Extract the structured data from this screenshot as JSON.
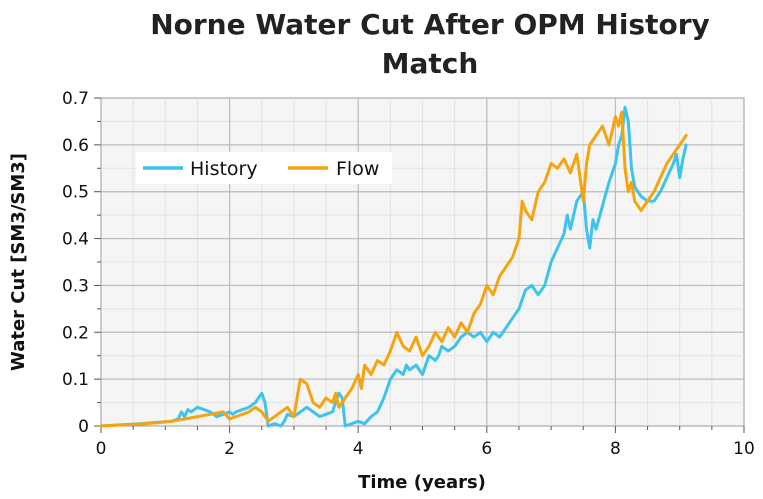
{
  "chart_data": {
    "type": "line",
    "title_line1": "Norne Water Cut After OPM History",
    "title_line2": "Match",
    "xlabel": "Time (years)",
    "ylabel": "Water Cut [SM3/SM3]",
    "xlim": [
      0,
      10
    ],
    "ylim": [
      0,
      0.7
    ],
    "x_ticks": [
      "0",
      "2",
      "4",
      "6",
      "8",
      "10"
    ],
    "y_ticks": [
      "0",
      "0.1",
      "0.2",
      "0.3",
      "0.4",
      "0.5",
      "0.6",
      "0.7"
    ],
    "grid": true,
    "legend_position": "upper-left",
    "series": [
      {
        "name": "History",
        "color": "#3cc3ee",
        "x": [
          0,
          0.6,
          1.1,
          1.2,
          1.25,
          1.3,
          1.35,
          1.4,
          1.5,
          1.6,
          1.7,
          1.8,
          1.9,
          2.0,
          2.05,
          2.1,
          2.2,
          2.3,
          2.4,
          2.45,
          2.5,
          2.55,
          2.6,
          2.7,
          2.8,
          2.85,
          2.9,
          3.0,
          3.1,
          3.2,
          3.3,
          3.4,
          3.5,
          3.6,
          3.7,
          3.75,
          3.8,
          3.9,
          4.0,
          4.1,
          4.2,
          4.3,
          4.4,
          4.5,
          4.6,
          4.7,
          4.75,
          4.8,
          4.9,
          5.0,
          5.1,
          5.2,
          5.25,
          5.3,
          5.4,
          5.5,
          5.6,
          5.7,
          5.8,
          5.9,
          6.0,
          6.1,
          6.2,
          6.3,
          6.4,
          6.5,
          6.55,
          6.6,
          6.7,
          6.8,
          6.9,
          7.0,
          7.1,
          7.2,
          7.25,
          7.3,
          7.4,
          7.5,
          7.55,
          7.6,
          7.65,
          7.7,
          7.8,
          7.9,
          8.0,
          8.05,
          8.1,
          8.15,
          8.2,
          8.25,
          8.3,
          8.35,
          8.4,
          8.5,
          8.6,
          8.7,
          8.8,
          8.9,
          8.95,
          9.0,
          9.05,
          9.1
        ],
        "y": [
          0.0,
          0.005,
          0.01,
          0.015,
          0.03,
          0.02,
          0.035,
          0.03,
          0.04,
          0.035,
          0.03,
          0.02,
          0.025,
          0.03,
          0.025,
          0.03,
          0.035,
          0.04,
          0.05,
          0.06,
          0.07,
          0.05,
          0.0,
          0.005,
          0.0,
          0.01,
          0.025,
          0.02,
          0.03,
          0.04,
          0.03,
          0.02,
          0.025,
          0.03,
          0.07,
          0.06,
          0.0,
          0.005,
          0.01,
          0.005,
          0.02,
          0.03,
          0.06,
          0.1,
          0.12,
          0.11,
          0.13,
          0.12,
          0.13,
          0.11,
          0.15,
          0.14,
          0.15,
          0.17,
          0.16,
          0.17,
          0.19,
          0.2,
          0.19,
          0.2,
          0.18,
          0.2,
          0.19,
          0.21,
          0.23,
          0.25,
          0.27,
          0.29,
          0.3,
          0.28,
          0.3,
          0.35,
          0.38,
          0.41,
          0.45,
          0.42,
          0.48,
          0.5,
          0.42,
          0.38,
          0.44,
          0.42,
          0.47,
          0.52,
          0.56,
          0.6,
          0.62,
          0.68,
          0.65,
          0.55,
          0.51,
          0.5,
          0.49,
          0.48,
          0.48,
          0.5,
          0.53,
          0.56,
          0.58,
          0.53,
          0.57,
          0.6
        ]
      },
      {
        "name": "Flow",
        "color": "#f5a40f",
        "x": [
          0,
          0.7,
          1.1,
          1.3,
          1.5,
          1.7,
          1.9,
          2.0,
          2.1,
          2.2,
          2.3,
          2.4,
          2.5,
          2.6,
          2.7,
          2.8,
          2.9,
          3.0,
          3.05,
          3.1,
          3.2,
          3.3,
          3.4,
          3.5,
          3.6,
          3.65,
          3.7,
          3.8,
          3.9,
          4.0,
          4.05,
          4.1,
          4.2,
          4.3,
          4.4,
          4.5,
          4.6,
          4.7,
          4.8,
          4.9,
          5.0,
          5.1,
          5.2,
          5.3,
          5.4,
          5.5,
          5.6,
          5.7,
          5.8,
          5.9,
          6.0,
          6.1,
          6.2,
          6.3,
          6.4,
          6.5,
          6.55,
          6.6,
          6.7,
          6.8,
          6.9,
          7.0,
          7.1,
          7.2,
          7.3,
          7.4,
          7.5,
          7.55,
          7.6,
          7.7,
          7.8,
          7.9,
          8.0,
          8.05,
          8.1,
          8.15,
          8.2,
          8.25,
          8.3,
          8.4,
          8.5,
          8.6,
          8.7,
          8.8,
          8.9,
          9.0,
          9.05,
          9.1
        ],
        "y": [
          0.0,
          0.005,
          0.01,
          0.015,
          0.02,
          0.025,
          0.03,
          0.015,
          0.02,
          0.025,
          0.03,
          0.04,
          0.03,
          0.01,
          0.02,
          0.03,
          0.04,
          0.02,
          0.06,
          0.1,
          0.09,
          0.05,
          0.04,
          0.06,
          0.05,
          0.07,
          0.04,
          0.06,
          0.08,
          0.11,
          0.08,
          0.13,
          0.11,
          0.14,
          0.13,
          0.16,
          0.2,
          0.17,
          0.16,
          0.19,
          0.15,
          0.17,
          0.2,
          0.18,
          0.21,
          0.19,
          0.22,
          0.2,
          0.24,
          0.26,
          0.3,
          0.28,
          0.32,
          0.34,
          0.36,
          0.4,
          0.48,
          0.46,
          0.44,
          0.5,
          0.52,
          0.56,
          0.55,
          0.57,
          0.54,
          0.58,
          0.48,
          0.56,
          0.6,
          0.62,
          0.64,
          0.6,
          0.66,
          0.64,
          0.67,
          0.55,
          0.5,
          0.52,
          0.48,
          0.46,
          0.48,
          0.5,
          0.53,
          0.56,
          0.58,
          0.6,
          0.61,
          0.62
        ]
      }
    ]
  }
}
